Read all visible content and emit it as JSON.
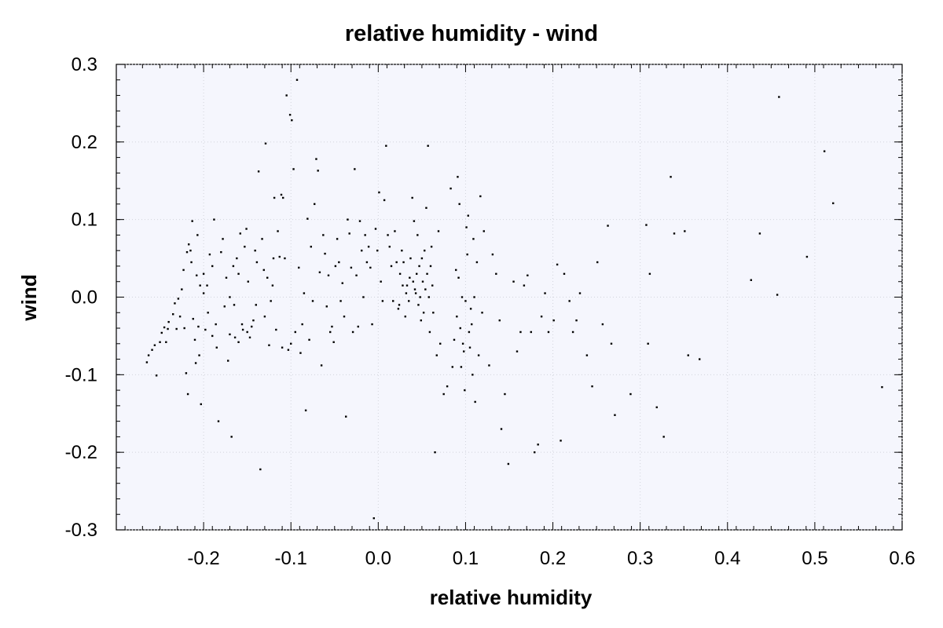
{
  "chart_data": {
    "type": "scatter",
    "title": "relative humidity - wind",
    "xlabel": "relative humidity",
    "ylabel": "wind",
    "xlim": [
      -0.3,
      0.6
    ],
    "ylim": [
      -0.3,
      0.3
    ],
    "x_ticks": [
      "-0.2",
      "-0.1",
      "0.0",
      "0.1",
      "0.2",
      "0.3",
      "0.4",
      "0.5",
      "0.6"
    ],
    "y_ticks": [
      "0.3",
      "0.2",
      "0.1",
      "0.0",
      "-0.1",
      "-0.2",
      "-0.3"
    ],
    "grid": true,
    "plot_background": "#f5f6fd",
    "marker_color": "#000000",
    "points": [
      [
        -0.265,
        -0.084
      ],
      [
        -0.263,
        -0.075
      ],
      [
        -0.259,
        -0.068
      ],
      [
        -0.256,
        -0.062
      ],
      [
        -0.254,
        -0.101
      ],
      [
        -0.25,
        -0.058
      ],
      [
        -0.248,
        -0.046
      ],
      [
        -0.245,
        -0.039
      ],
      [
        -0.243,
        -0.058
      ],
      [
        -0.241,
        -0.041
      ],
      [
        -0.24,
        -0.032
      ],
      [
        -0.235,
        -0.022
      ],
      [
        -0.233,
        -0.008
      ],
      [
        -0.231,
        -0.041
      ],
      [
        -0.229,
        -0.002
      ],
      [
        -0.227,
        -0.025
      ],
      [
        -0.225,
        0.01
      ],
      [
        -0.223,
        0.035
      ],
      [
        -0.222,
        -0.04
      ],
      [
        -0.22,
        -0.098
      ],
      [
        -0.219,
        0.058
      ],
      [
        -0.218,
        -0.125
      ],
      [
        -0.217,
        0.068
      ],
      [
        -0.215,
        0.06
      ],
      [
        -0.214,
        0.045
      ],
      [
        -0.213,
        0.098
      ],
      [
        -0.212,
        -0.028
      ],
      [
        -0.21,
        -0.055
      ],
      [
        -0.209,
        -0.085
      ],
      [
        -0.208,
        0.028
      ],
      [
        -0.207,
        0.08
      ],
      [
        -0.206,
        -0.038
      ],
      [
        -0.205,
        -0.075
      ],
      [
        -0.204,
        0.015
      ],
      [
        -0.203,
        -0.138
      ],
      [
        -0.2,
        0.005
      ],
      [
        -0.198,
        -0.042
      ],
      [
        -0.196,
        0.015
      ],
      [
        -0.193,
        0.055
      ],
      [
        -0.19,
        -0.05
      ],
      [
        -0.188,
        0.1
      ],
      [
        -0.186,
        -0.035
      ],
      [
        -0.183,
        -0.16
      ],
      [
        -0.18,
        0.058
      ],
      [
        -0.178,
        0.075
      ],
      [
        -0.176,
        -0.012
      ],
      [
        -0.174,
        0.025
      ],
      [
        -0.172,
        -0.082
      ],
      [
        -0.17,
        -0.048
      ],
      [
        -0.168,
        -0.18
      ],
      [
        -0.166,
        0.04
      ],
      [
        -0.164,
        -0.052
      ],
      [
        -0.162,
        0.05
      ],
      [
        -0.16,
        -0.058
      ],
      [
        -0.158,
        0.082
      ],
      [
        -0.156,
        -0.035
      ],
      [
        -0.155,
        -0.042
      ],
      [
        -0.153,
        0.065
      ],
      [
        -0.151,
        0.088
      ],
      [
        -0.149,
        0.02
      ],
      [
        -0.147,
        -0.052
      ],
      [
        -0.145,
        -0.038
      ],
      [
        -0.143,
        -0.03
      ],
      [
        -0.141,
        0.06
      ],
      [
        -0.139,
        0.045
      ],
      [
        -0.137,
        0.162
      ],
      [
        -0.135,
        -0.222
      ],
      [
        -0.133,
        0.075
      ],
      [
        -0.131,
        0.035
      ],
      [
        -0.129,
        0.198
      ],
      [
        -0.127,
        0.025
      ],
      [
        -0.125,
        -0.062
      ],
      [
        -0.123,
        -0.005
      ],
      [
        -0.121,
        0.015
      ],
      [
        -0.119,
        0.128
      ],
      [
        -0.117,
        -0.042
      ],
      [
        -0.115,
        0.085
      ],
      [
        -0.113,
        0.052
      ],
      [
        -0.111,
        0.132
      ],
      [
        -0.109,
        0.128
      ],
      [
        -0.107,
        0.05
      ],
      [
        -0.105,
        0.26
      ],
      [
        -0.103,
        -0.068
      ],
      [
        -0.101,
        0.235
      ],
      [
        -0.099,
        0.228
      ],
      [
        -0.097,
        0.165
      ],
      [
        -0.095,
        -0.045
      ],
      [
        -0.093,
        0.28
      ],
      [
        -0.091,
        0.038
      ],
      [
        -0.089,
        -0.072
      ],
      [
        -0.087,
        -0.035
      ],
      [
        -0.085,
        0.005
      ],
      [
        -0.083,
        -0.146
      ],
      [
        -0.081,
        0.101
      ],
      [
        -0.079,
        -0.055
      ],
      [
        -0.077,
        0.065
      ],
      [
        -0.075,
        -0.005
      ],
      [
        -0.073,
        0.12
      ],
      [
        -0.071,
        0.178
      ],
      [
        -0.069,
        0.163
      ],
      [
        -0.067,
        0.032
      ],
      [
        -0.065,
        -0.088
      ],
      [
        -0.063,
        0.08
      ],
      [
        -0.061,
        0.056
      ],
      [
        -0.059,
        -0.012
      ],
      [
        -0.057,
        0.028
      ],
      [
        -0.055,
        -0.045
      ],
      [
        -0.053,
        -0.038
      ],
      [
        -0.051,
        -0.058
      ],
      [
        -0.049,
        0.04
      ],
      [
        -0.047,
        0.075
      ],
      [
        -0.045,
        0.045
      ],
      [
        -0.043,
        -0.005
      ],
      [
        -0.041,
        0.018
      ],
      [
        -0.039,
        -0.025
      ],
      [
        -0.037,
        -0.154
      ],
      [
        -0.035,
        0.1
      ],
      [
        -0.033,
        0.082
      ],
      [
        -0.031,
        0.038
      ],
      [
        -0.029,
        -0.045
      ],
      [
        -0.027,
        0.165
      ],
      [
        -0.025,
        0.028
      ],
      [
        -0.023,
        -0.038
      ],
      [
        -0.021,
        0.098
      ],
      [
        -0.019,
        0.06
      ],
      [
        -0.017,
        0.0
      ],
      [
        -0.015,
        0.08
      ],
      [
        -0.013,
        0.045
      ],
      [
        -0.011,
        0.065
      ],
      [
        -0.009,
        0.038
      ],
      [
        -0.007,
        -0.035
      ],
      [
        -0.005,
        -0.285
      ],
      [
        -0.003,
        0.088
      ],
      [
        -0.001,
        0.06
      ],
      [
        0.001,
        0.135
      ],
      [
        0.003,
        0.02
      ],
      [
        0.005,
        -0.005
      ],
      [
        0.007,
        0.125
      ],
      [
        0.009,
        0.195
      ],
      [
        0.011,
        0.08
      ],
      [
        0.013,
        0.065
      ],
      [
        0.015,
        0.04
      ],
      [
        0.017,
        -0.005
      ],
      [
        0.019,
        0.085
      ],
      [
        0.021,
        0.045
      ],
      [
        0.023,
        -0.015
      ],
      [
        0.025,
        0.03
      ],
      [
        0.027,
        0.06
      ],
      [
        0.029,
        0.045
      ],
      [
        0.031,
        -0.025
      ],
      [
        0.033,
        0.015
      ],
      [
        0.035,
        -0.005
      ],
      [
        0.037,
        0.05
      ],
      [
        0.039,
        0.128
      ],
      [
        0.041,
        0.098
      ],
      [
        0.043,
        0.005
      ],
      [
        0.045,
        0.08
      ],
      [
        0.047,
        0.04
      ],
      [
        0.049,
        -0.03
      ],
      [
        0.051,
        0.02
      ],
      [
        0.053,
        0.06
      ],
      [
        0.055,
        0.115
      ],
      [
        0.057,
        0.195
      ],
      [
        0.059,
        -0.045
      ],
      [
        0.061,
        0.065
      ],
      [
        0.063,
        -0.02
      ],
      [
        0.065,
        -0.2
      ],
      [
        0.067,
        -0.075
      ],
      [
        0.069,
        0.085
      ],
      [
        0.071,
        -0.06
      ],
      [
        0.075,
        -0.125
      ],
      [
        0.079,
        -0.115
      ],
      [
        0.083,
        0.14
      ],
      [
        0.085,
        -0.09
      ],
      [
        0.087,
        -0.055
      ],
      [
        0.089,
        0.035
      ],
      [
        0.091,
        0.155
      ],
      [
        0.093,
        0.12
      ],
      [
        0.095,
        -0.09
      ],
      [
        0.097,
        -0.06
      ],
      [
        0.099,
        -0.12
      ],
      [
        0.101,
        0.09
      ],
      [
        0.103,
        0.105
      ],
      [
        0.105,
        -0.065
      ],
      [
        0.107,
        -0.035
      ],
      [
        0.109,
        0.075
      ],
      [
        0.111,
        -0.135
      ],
      [
        0.113,
        0.045
      ],
      [
        0.115,
        -0.075
      ],
      [
        0.117,
        0.13
      ],
      [
        0.119,
        -0.02
      ],
      [
        0.121,
        0.085
      ],
      [
        0.127,
        -0.088
      ],
      [
        0.131,
        0.055
      ],
      [
        0.135,
        0.03
      ],
      [
        0.139,
        -0.03
      ],
      [
        0.141,
        -0.17
      ],
      [
        0.145,
        -0.125
      ],
      [
        0.149,
        -0.215
      ],
      [
        0.155,
        0.02
      ],
      [
        0.159,
        -0.07
      ],
      [
        0.163,
        -0.045
      ],
      [
        0.167,
        0.015
      ],
      [
        0.171,
        0.028
      ],
      [
        0.175,
        -0.045
      ],
      [
        0.179,
        -0.2
      ],
      [
        0.183,
        -0.19
      ],
      [
        0.187,
        -0.025
      ],
      [
        0.191,
        0.005
      ],
      [
        0.195,
        -0.045
      ],
      [
        0.201,
        -0.03
      ],
      [
        0.205,
        0.042
      ],
      [
        0.209,
        -0.185
      ],
      [
        0.213,
        0.03
      ],
      [
        0.219,
        -0.005
      ],
      [
        0.223,
        -0.045
      ],
      [
        0.227,
        -0.03
      ],
      [
        0.231,
        0.005
      ],
      [
        0.239,
        -0.075
      ],
      [
        0.245,
        -0.115
      ],
      [
        0.251,
        0.045
      ],
      [
        0.257,
        -0.035
      ],
      [
        0.263,
        0.092
      ],
      [
        0.267,
        -0.06
      ],
      [
        0.271,
        -0.152
      ],
      [
        0.289,
        -0.125
      ],
      [
        0.307,
        0.093
      ],
      [
        0.309,
        -0.06
      ],
      [
        0.311,
        0.03
      ],
      [
        0.319,
        -0.142
      ],
      [
        0.327,
        -0.18
      ],
      [
        0.335,
        0.155
      ],
      [
        0.339,
        0.082
      ],
      [
        0.351,
        0.085
      ],
      [
        0.355,
        -0.075
      ],
      [
        0.368,
        -0.08
      ],
      [
        0.427,
        0.022
      ],
      [
        0.437,
        0.082
      ],
      [
        0.457,
        0.003
      ],
      [
        0.459,
        0.258
      ],
      [
        0.491,
        0.052
      ],
      [
        0.511,
        0.188
      ],
      [
        0.521,
        0.121
      ],
      [
        0.577,
        -0.116
      ],
      [
        0.04,
        0.02
      ],
      [
        0.042,
        0.01
      ],
      [
        0.044,
        0.03
      ],
      [
        0.046,
        -0.01
      ],
      [
        0.048,
        0.0
      ],
      [
        0.05,
        0.05
      ],
      [
        0.052,
        -0.02
      ],
      [
        0.054,
        0.01
      ],
      [
        0.036,
        0.025
      ],
      [
        0.032,
        0.005
      ],
      [
        0.028,
        0.015
      ],
      [
        0.024,
        -0.01
      ],
      [
        0.056,
        0.03
      ],
      [
        0.058,
        0.0
      ],
      [
        0.06,
        0.04
      ],
      [
        0.062,
        0.015
      ],
      [
        0.09,
        -0.025
      ],
      [
        0.092,
        0.025
      ],
      [
        0.094,
        -0.04
      ],
      [
        0.096,
        0.0
      ],
      [
        0.098,
        -0.07
      ],
      [
        0.1,
        -0.005
      ],
      [
        0.102,
        0.055
      ],
      [
        0.104,
        -0.045
      ],
      [
        0.106,
        -0.015
      ],
      [
        0.108,
        -0.1
      ],
      [
        0.11,
        0.0
      ],
      [
        -0.2,
        0.03
      ],
      [
        -0.195,
        -0.02
      ],
      [
        -0.19,
        0.04
      ],
      [
        -0.185,
        -0.065
      ],
      [
        -0.17,
        0.0
      ],
      [
        -0.165,
        -0.01
      ],
      [
        -0.16,
        0.03
      ],
      [
        -0.15,
        -0.045
      ],
      [
        -0.14,
        -0.01
      ],
      [
        -0.13,
        -0.025
      ],
      [
        -0.12,
        0.05
      ],
      [
        -0.11,
        -0.065
      ],
      [
        -0.1,
        -0.06
      ]
    ]
  }
}
